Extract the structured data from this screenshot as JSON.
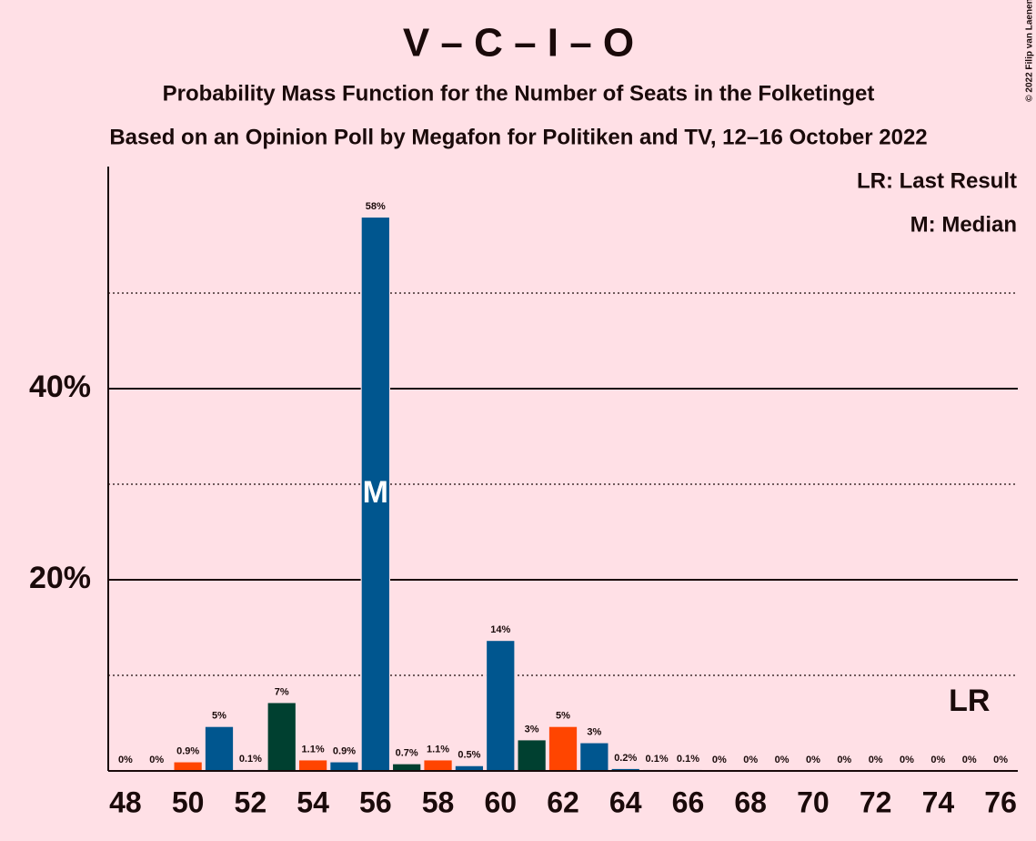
{
  "chart_data": {
    "type": "bar",
    "title": "V – C – I – O",
    "subtitle": "Probability Mass Function for the Number of Seats in the Folketinget",
    "subtitle2": "Based on an Opinion Poll by Megafon for Politiken and TV, 12–16 October 2022",
    "copyright": "© 2022 Filip van Laenen",
    "legend": [
      "LR: Last Result",
      "M: Median"
    ],
    "x": [
      48,
      49,
      50,
      51,
      52,
      53,
      54,
      55,
      56,
      57,
      58,
      59,
      60,
      61,
      62,
      63,
      64,
      65,
      66,
      67,
      68,
      69,
      70,
      71,
      72,
      73,
      74,
      75,
      76
    ],
    "xticks": [
      48,
      50,
      52,
      54,
      56,
      58,
      60,
      62,
      64,
      66,
      68,
      70,
      72,
      74,
      76
    ],
    "xlim": [
      47.45,
      76.55
    ],
    "values": [
      0,
      0,
      0.9,
      4.6,
      0.1,
      7.1,
      1.1,
      0.9,
      57.9,
      0.7,
      1.1,
      0.5,
      13.6,
      3.2,
      4.6,
      2.9,
      0.2,
      0.1,
      0.1,
      0,
      0,
      0,
      0,
      0,
      0,
      0,
      0,
      0,
      0
    ],
    "value_labels": [
      "0%",
      "0%",
      "0.9%",
      "5%",
      "0.1%",
      "7%",
      "1.1%",
      "0.9%",
      "58%",
      "0.7%",
      "1.1%",
      "0.5%",
      "14%",
      "3%",
      "5%",
      "3%",
      "0.2%",
      "0.1%",
      "0.1%",
      "0%",
      "0%",
      "0%",
      "0%",
      "0%",
      "0%",
      "0%",
      "0%",
      "0%",
      "0%"
    ],
    "colors": [
      "#00568f",
      "#00568f",
      "#ff4500",
      "#00568f",
      "#00568f",
      "#004030",
      "#ff4500",
      "#00568f",
      "#00568f",
      "#004030",
      "#ff4500",
      "#00568f",
      "#00568f",
      "#004030",
      "#ff4500",
      "#00568f",
      "#00568f",
      "#00568f",
      "#00568f",
      "#00568f",
      "#00568f",
      "#00568f",
      "#00568f",
      "#00568f",
      "#00568f",
      "#00568f",
      "#00568f",
      "#00568f",
      "#00568f"
    ],
    "ylim": [
      0,
      63
    ],
    "yticks": [
      {
        "value": 20,
        "label": "20%"
      },
      {
        "value": 40,
        "label": "40%"
      }
    ],
    "minor_yticks": [
      10,
      30,
      50
    ],
    "median": {
      "x": 56,
      "label": "M"
    },
    "last_result": {
      "x": 75,
      "label": "LR"
    }
  }
}
